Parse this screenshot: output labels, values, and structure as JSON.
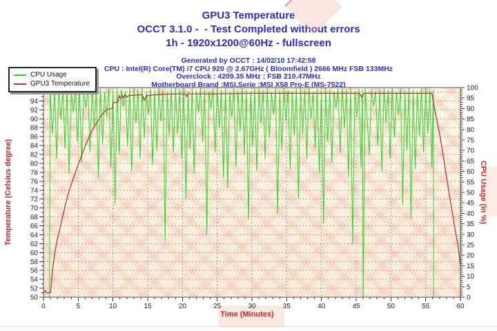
{
  "title": {
    "line1": "GPU3 Temperature",
    "line2": "OCCT 3.1.0 -  - Test Completed without errors",
    "line3": "1h - 1920x1200@60Hz - fullscreen",
    "color": "#2b2bc4"
  },
  "info": {
    "color": "#2b2bc4",
    "lines": [
      "Generated by OCCT : 14/02/10 17:42:58",
      "CPU : Intel(R) Core(TM) i7 CPU 920 @ 2.67GHz ( Bloomfield ) 2666 MHz FSB 133MHz",
      "Overclock : 4209.35 MHz ; FSB 210.47MHz",
      "Motherboard Brand :MSI,Serie :MSI X58 Pro-E (MS-7522)"
    ]
  },
  "legend": {
    "items": [
      {
        "label": "CPU Usage",
        "color": "#2ad42a"
      },
      {
        "label": "GPU3 Temperature",
        "color": "#a83c3c"
      }
    ]
  },
  "chart_data": {
    "type": "line",
    "title": "GPU3 Temperature",
    "grid": {
      "color": "#9a9a9a",
      "style": "dashed",
      "h_step_celsius": 2,
      "v_step_minutes": 5
    },
    "frame_color": "#4d4d4d",
    "tick_color": "#333333",
    "tick_label_color": "#222222",
    "x_axis": {
      "label": "Time (Minutes)",
      "color": "#cc2222",
      "min": 0,
      "max": 60,
      "tick_step": 5,
      "minor_step": 1
    },
    "y_left": {
      "label": "Temperature (Celsius degree)",
      "color": "#cc2222",
      "min": 50,
      "max": 97,
      "tick_min": 50,
      "tick_max": 96,
      "tick_step": 2,
      "minor_step": 1
    },
    "y_right": {
      "label": "CPU Usage (in %)",
      "color": "#cc2222",
      "min": 0,
      "max": 100,
      "tick_step": 5,
      "minor_step": 1
    },
    "series": [
      {
        "name": "CPU Usage",
        "axis": "right",
        "color": "#2ad42a",
        "width": 1,
        "points": [
          [
            0.85,
            0
          ],
          [
            0.95,
            99
          ],
          [
            1.3,
            78
          ],
          [
            1.6,
            99
          ],
          [
            1.9,
            66
          ],
          [
            2.2,
            100
          ],
          [
            2.5,
            85
          ],
          [
            2.8,
            98
          ],
          [
            3.1,
            71
          ],
          [
            3.4,
            99.5
          ],
          [
            3.7,
            59
          ],
          [
            4.0,
            98.5
          ],
          [
            4.3,
            88
          ],
          [
            4.6,
            100
          ],
          [
            4.9,
            74
          ],
          [
            5.2,
            99
          ],
          [
            5.5,
            64
          ],
          [
            5.8,
            98.2
          ],
          [
            6.1,
            90
          ],
          [
            6.4,
            99.5
          ],
          [
            6.7,
            69
          ],
          [
            7.0,
            100
          ],
          [
            7.3,
            81
          ],
          [
            7.6,
            99
          ],
          [
            7.9,
            57
          ],
          [
            8.2,
            100
          ],
          [
            8.5,
            73
          ],
          [
            8.8,
            98
          ],
          [
            9.1,
            86
          ],
          [
            9.4,
            99.5
          ],
          [
            9.7,
            62
          ],
          [
            10.0,
            98.5
          ],
          [
            10.3,
            44
          ],
          [
            10.6,
            100
          ],
          [
            10.9,
            68
          ],
          [
            11.2,
            99
          ],
          [
            11.5,
            91
          ],
          [
            11.8,
            98.2
          ],
          [
            12.1,
            72
          ],
          [
            12.4,
            99.5
          ],
          [
            12.7,
            60
          ],
          [
            13.0,
            100
          ],
          [
            13.3,
            83
          ],
          [
            13.6,
            99
          ],
          [
            13.9,
            66
          ],
          [
            14.2,
            100
          ],
          [
            14.5,
            76
          ],
          [
            14.8,
            98
          ],
          [
            15.1,
            87
          ],
          [
            15.4,
            99.5
          ],
          [
            15.7,
            63
          ],
          [
            16.0,
            98.5
          ],
          [
            16.3,
            70
          ],
          [
            16.6,
            100
          ],
          [
            16.9,
            84
          ],
          [
            17.2,
            99
          ],
          [
            17.5,
            27
          ],
          [
            17.8,
            98.2
          ],
          [
            18.1,
            77
          ],
          [
            18.4,
            99.5
          ],
          [
            18.7,
            69
          ],
          [
            19.0,
            100
          ],
          [
            19.3,
            78
          ],
          [
            19.6,
            99
          ],
          [
            19.9,
            66
          ],
          [
            20.2,
            100
          ],
          [
            20.5,
            47
          ],
          [
            20.8,
            98
          ],
          [
            21.1,
            71
          ],
          [
            21.4,
            99.5
          ],
          [
            21.7,
            59
          ],
          [
            22.0,
            98.5
          ],
          [
            22.3,
            88
          ],
          [
            22.6,
            100
          ],
          [
            22.9,
            74
          ],
          [
            23.2,
            99
          ],
          [
            23.5,
            30
          ],
          [
            23.8,
            98.2
          ],
          [
            24.1,
            90
          ],
          [
            24.4,
            99.5
          ],
          [
            24.7,
            69
          ],
          [
            25.0,
            100
          ],
          [
            25.3,
            81
          ],
          [
            25.6,
            99
          ],
          [
            25.9,
            57
          ],
          [
            26.2,
            100
          ],
          [
            26.5,
            52
          ],
          [
            26.8,
            98
          ],
          [
            27.1,
            86
          ],
          [
            27.4,
            99.5
          ],
          [
            27.7,
            62
          ],
          [
            28.0,
            98.5
          ],
          [
            28.3,
            79
          ],
          [
            28.6,
            100
          ],
          [
            28.9,
            68
          ],
          [
            29.2,
            99
          ],
          [
            29.5,
            37
          ],
          [
            29.8,
            98.2
          ],
          [
            30.1,
            72
          ],
          [
            30.4,
            99.5
          ],
          [
            30.7,
            60
          ],
          [
            31.0,
            100
          ],
          [
            31.3,
            83
          ],
          [
            31.6,
            99
          ],
          [
            31.9,
            66
          ],
          [
            32.2,
            100
          ],
          [
            32.5,
            76
          ],
          [
            32.8,
            98
          ],
          [
            33.1,
            87
          ],
          [
            33.4,
            99.5
          ],
          [
            33.7,
            40
          ],
          [
            34.0,
            98.5
          ],
          [
            34.3,
            70
          ],
          [
            34.6,
            100
          ],
          [
            34.9,
            84
          ],
          [
            35.2,
            99
          ],
          [
            35.5,
            61
          ],
          [
            35.8,
            98.2
          ],
          [
            36.1,
            77
          ],
          [
            36.4,
            99.5
          ],
          [
            36.7,
            47
          ],
          [
            37.0,
            100
          ],
          [
            37.3,
            78
          ],
          [
            37.6,
            99
          ],
          [
            37.9,
            66
          ],
          [
            38.2,
            100
          ],
          [
            38.5,
            85
          ],
          [
            38.8,
            98
          ],
          [
            39.1,
            71
          ],
          [
            39.4,
            99.5
          ],
          [
            39.7,
            59
          ],
          [
            40.0,
            98.5
          ],
          [
            40.3,
            35
          ],
          [
            40.6,
            100
          ],
          [
            40.9,
            74
          ],
          [
            41.2,
            99
          ],
          [
            41.5,
            64
          ],
          [
            41.8,
            98.2
          ],
          [
            42.1,
            90
          ],
          [
            42.4,
            99.5
          ],
          [
            42.7,
            69
          ],
          [
            43.0,
            100
          ],
          [
            43.3,
            81
          ],
          [
            43.6,
            99
          ],
          [
            43.9,
            57
          ],
          [
            44.2,
            100
          ],
          [
            44.5,
            25
          ],
          [
            44.8,
            98
          ],
          [
            45.1,
            86
          ],
          [
            45.4,
            99.5
          ],
          [
            45.7,
            62
          ],
          [
            45.9,
            99
          ],
          [
            46.0,
            0
          ],
          [
            46.3,
            100
          ],
          [
            46.9,
            68
          ],
          [
            47.2,
            99
          ],
          [
            47.5,
            91
          ],
          [
            47.8,
            98.2
          ],
          [
            48.1,
            72
          ],
          [
            48.4,
            99.5
          ],
          [
            48.7,
            60
          ],
          [
            49.0,
            100
          ],
          [
            49.3,
            83
          ],
          [
            49.6,
            99
          ],
          [
            49.9,
            66
          ],
          [
            50.2,
            100
          ],
          [
            50.5,
            76
          ],
          [
            50.8,
            98
          ],
          [
            51.1,
            87
          ],
          [
            51.4,
            99.5
          ],
          [
            51.7,
            44
          ],
          [
            52.0,
            98.5
          ],
          [
            52.3,
            70
          ],
          [
            52.6,
            100
          ],
          [
            52.9,
            37
          ],
          [
            53.2,
            99
          ],
          [
            53.5,
            61
          ],
          [
            53.8,
            98.2
          ],
          [
            54.1,
            77
          ],
          [
            54.4,
            99.5
          ],
          [
            54.7,
            69
          ],
          [
            55.0,
            100
          ],
          [
            55.3,
            78
          ],
          [
            55.6,
            99
          ],
          [
            55.9,
            62
          ],
          [
            56.1,
            99
          ],
          [
            56.15,
            0
          ]
        ]
      },
      {
        "name": "GPU3 Temperature",
        "axis": "left",
        "color": "#a83c3c",
        "width": 1.3,
        "points": [
          [
            0,
            51
          ],
          [
            0.3,
            51.5
          ],
          [
            0.4,
            51
          ],
          [
            1.0,
            51
          ],
          [
            1.1,
            52.5
          ],
          [
            1.25,
            55.5
          ],
          [
            1.45,
            58
          ],
          [
            1.7,
            60.5
          ],
          [
            2.0,
            63
          ],
          [
            2.3,
            65
          ],
          [
            2.6,
            67
          ],
          [
            2.9,
            69
          ],
          [
            3.2,
            71
          ],
          [
            3.5,
            72.8
          ],
          [
            3.8,
            74.3
          ],
          [
            4.1,
            75.8
          ],
          [
            4.5,
            77.5
          ],
          [
            4.9,
            79.3
          ],
          [
            5.3,
            81
          ],
          [
            5.7,
            82.7
          ],
          [
            6.1,
            84.2
          ],
          [
            6.5,
            85.7
          ],
          [
            6.9,
            87
          ],
          [
            7.3,
            88.2
          ],
          [
            7.7,
            89.2
          ],
          [
            8.1,
            90.2
          ],
          [
            8.5,
            91.1
          ],
          [
            8.9,
            91.8
          ],
          [
            9.3,
            92.2
          ],
          [
            9.9,
            92.3
          ],
          [
            10.0,
            93.6
          ],
          [
            10.7,
            93.7
          ],
          [
            10.9,
            95.2
          ],
          [
            11.1,
            94.5
          ],
          [
            11.3,
            95.3
          ],
          [
            11.5,
            94.7
          ],
          [
            11.7,
            95.4
          ],
          [
            12.0,
            94.9
          ],
          [
            12.3,
            95.2
          ],
          [
            13.2,
            95.3
          ],
          [
            14.2,
            95.4
          ],
          [
            14.5,
            94.2
          ],
          [
            14.8,
            95.1
          ],
          [
            15.5,
            95.3
          ],
          [
            17.0,
            95.5
          ],
          [
            19.0,
            95.6
          ],
          [
            20.4,
            95.6
          ],
          [
            20.6,
            95.0
          ],
          [
            20.8,
            95.6
          ],
          [
            25.0,
            95.6
          ],
          [
            30.0,
            95.7
          ],
          [
            35.0,
            95.7
          ],
          [
            40.0,
            95.7
          ],
          [
            45.5,
            95.7
          ],
          [
            45.8,
            94.8
          ],
          [
            46.1,
            95.7
          ],
          [
            50.0,
            95.7
          ],
          [
            55.9,
            95.7
          ],
          [
            56.2,
            93.0
          ],
          [
            56.5,
            90.5
          ],
          [
            56.9,
            87.5
          ],
          [
            57.3,
            84.0
          ],
          [
            57.7,
            80.0
          ],
          [
            58.1,
            76.0
          ],
          [
            58.5,
            72.0
          ],
          [
            58.9,
            68.5
          ],
          [
            59.2,
            65.5
          ],
          [
            59.5,
            63.0
          ],
          [
            59.7,
            61.0
          ],
          [
            59.85,
            59.0
          ],
          [
            59.95,
            57.5
          ],
          [
            60,
            56.8
          ]
        ]
      }
    ]
  }
}
